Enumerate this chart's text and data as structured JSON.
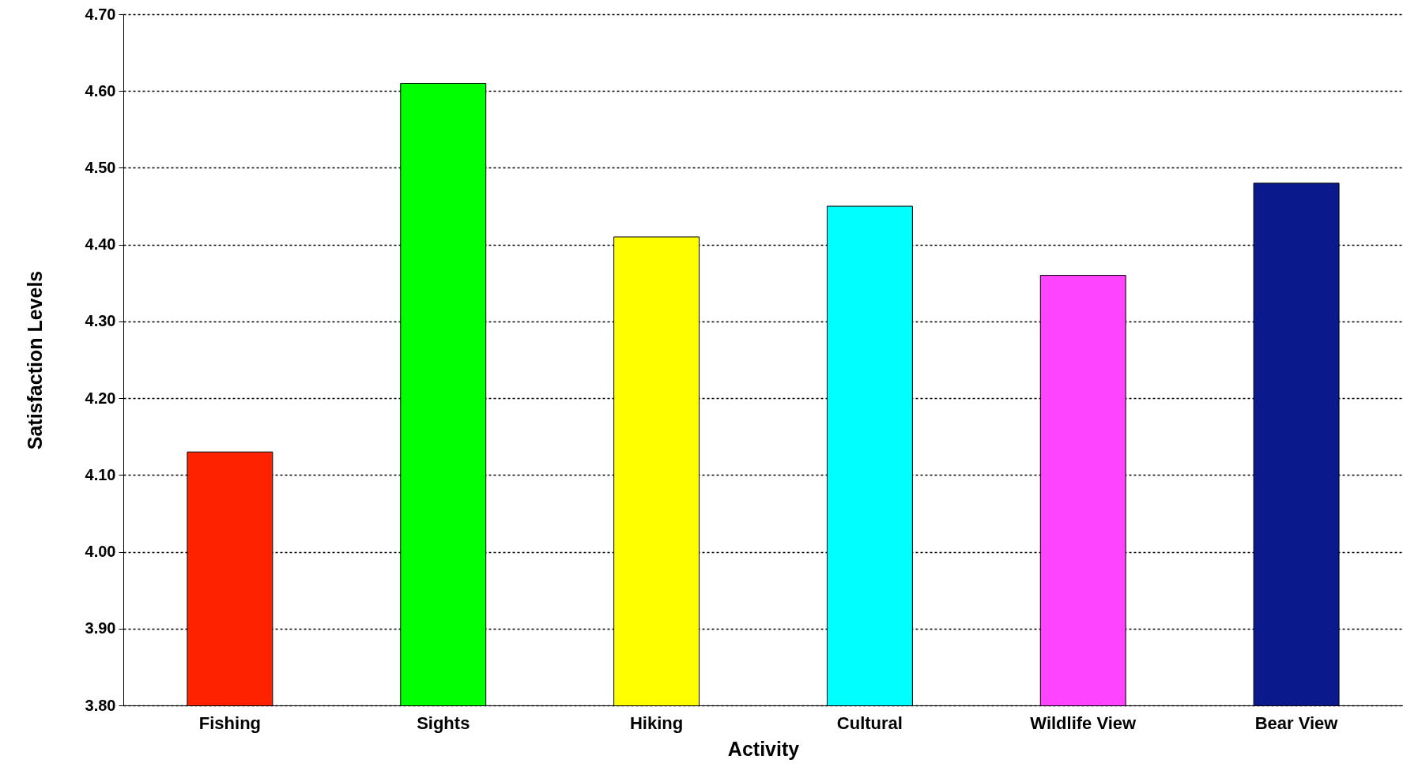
{
  "chart_data": {
    "type": "bar",
    "xlabel": "Activity",
    "ylabel": "Satisfaction Levels",
    "categories": [
      "Fishing",
      "Sights",
      "Hiking",
      "Cultural",
      "Wildlife View",
      "Bear View"
    ],
    "values": [
      4.13,
      4.61,
      4.41,
      4.45,
      4.36,
      4.48
    ],
    "colors": [
      "#ff2200",
      "#00ff00",
      "#ffff00",
      "#00ffff",
      "#ff44ff",
      "#0a1a8c"
    ],
    "ylim": [
      3.8,
      4.7
    ],
    "yticks": [
      {
        "value": 3.8,
        "label": "3.80"
      },
      {
        "value": 3.9,
        "label": "3.90"
      },
      {
        "value": 4.0,
        "label": "4.00"
      },
      {
        "value": 4.1,
        "label": "4.10"
      },
      {
        "value": 4.2,
        "label": "4.20"
      },
      {
        "value": 4.3,
        "label": "4.30"
      },
      {
        "value": 4.4,
        "label": "4.40"
      },
      {
        "value": 4.5,
        "label": "4.50"
      },
      {
        "value": 4.6,
        "label": "4.60"
      },
      {
        "value": 4.7,
        "label": "4.70"
      }
    ],
    "grid": "y"
  }
}
